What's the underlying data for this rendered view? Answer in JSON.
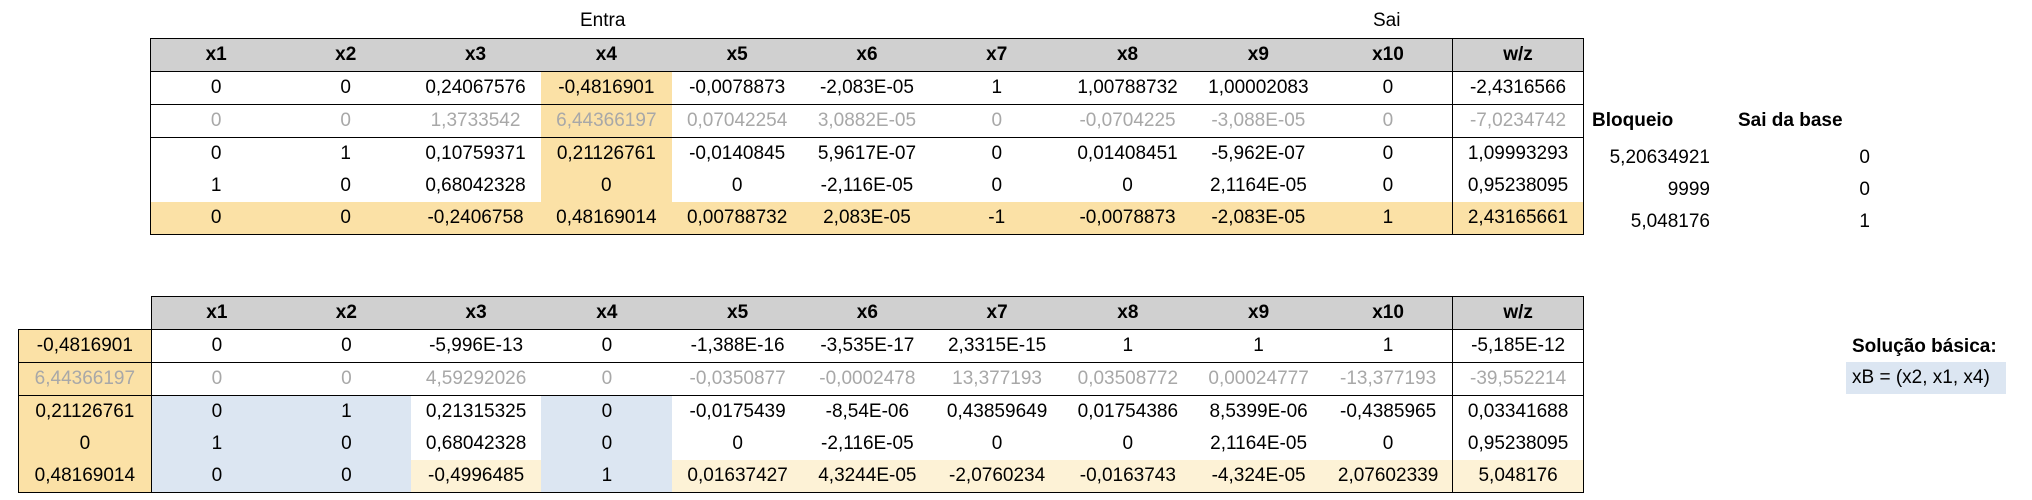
{
  "top": {
    "label_entra": "Entra",
    "label_sai": "Sai",
    "headers": [
      "x1",
      "x2",
      "x3",
      "x4",
      "x5",
      "x6",
      "x7",
      "x8",
      "x9",
      "x10",
      "w/z"
    ],
    "rows": [
      [
        "0",
        "0",
        "0,24067576",
        "-0,4816901",
        "-0,0078873",
        "-2,083E-05",
        "1",
        "1,00788732",
        "1,00002083",
        "0",
        "-2,4316566"
      ],
      [
        "0",
        "0",
        "1,3733542",
        "6,44366197",
        "0,07042254",
        "3,0882E-05",
        "0",
        "-0,0704225",
        "-3,088E-05",
        "0",
        "-7,0234742"
      ],
      [
        "0",
        "1",
        "0,10759371",
        "0,21126761",
        "-0,0140845",
        "5,9617E-07",
        "0",
        "0,01408451",
        "-5,962E-07",
        "0",
        "1,09993293"
      ],
      [
        "1",
        "0",
        "0,68042328",
        "0",
        "0",
        "-2,116E-05",
        "0",
        "0",
        "2,1164E-05",
        "0",
        "0,95238095"
      ],
      [
        "0",
        "0",
        "-0,2406758",
        "0,48169014",
        "0,00788732",
        "2,083E-05",
        "-1",
        "-0,0078873",
        "-2,083E-05",
        "1",
        "2,43165661"
      ]
    ],
    "bloqueio_header": "Bloqueio",
    "sai_base_header": "Sai da base",
    "bloqueio": [
      "5,20634921",
      "9999",
      "5,048176"
    ],
    "sai_base": [
      "0",
      "0",
      "1"
    ]
  },
  "bottom": {
    "headers": [
      "x1",
      "x2",
      "x3",
      "x4",
      "x5",
      "x6",
      "x7",
      "x8",
      "x9",
      "x10",
      "w/z"
    ],
    "multipliers": [
      "-0,4816901",
      "6,44366197",
      "0,21126761",
      "0",
      "0,48169014"
    ],
    "rows": [
      [
        "0",
        "0",
        "-5,996E-13",
        "0",
        "-1,388E-16",
        "-3,535E-17",
        "2,3315E-15",
        "1",
        "1",
        "1",
        "-5,185E-12"
      ],
      [
        "0",
        "0",
        "4,59292026",
        "0",
        "-0,0350877",
        "-0,0002478",
        "13,377193",
        "0,03508772",
        "0,00024777",
        "-13,377193",
        "-39,552214"
      ],
      [
        "0",
        "1",
        "0,21315325",
        "0",
        "-0,0175439",
        "-8,54E-06",
        "0,43859649",
        "0,01754386",
        "8,5399E-06",
        "-0,4385965",
        "0,03341688"
      ],
      [
        "1",
        "0",
        "0,68042328",
        "0",
        "0",
        "-2,116E-05",
        "0",
        "0",
        "2,1164E-05",
        "0",
        "0,95238095"
      ],
      [
        "0",
        "0",
        "-0,4996485",
        "1",
        "0,01637427",
        "4,3244E-05",
        "-2,0760234",
        "-0,0163743",
        "-4,324E-05",
        "2,07602339",
        "5,048176"
      ]
    ]
  },
  "solution": {
    "title": "Solução básica:",
    "value": "xB = (x2, x1, x4)"
  }
}
